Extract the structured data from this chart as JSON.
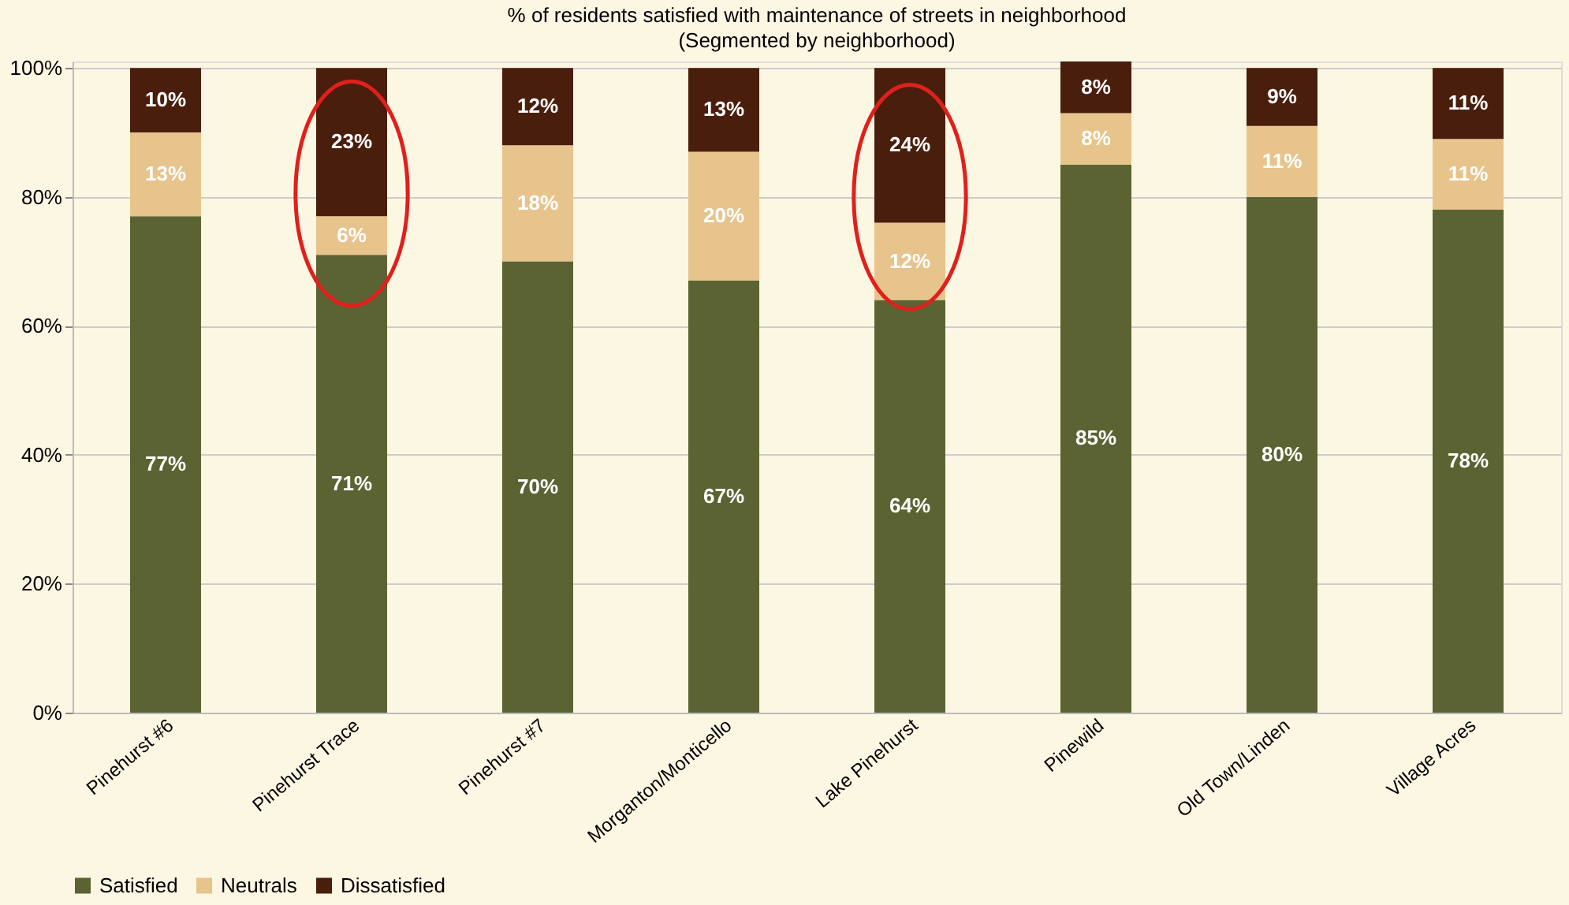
{
  "chart_data": {
    "type": "bar",
    "stacked": true,
    "title": "% of residents satisfied with maintenance of streets in neighborhood",
    "subtitle": "(Segmented by neighborhood)",
    "categories": [
      "Pinehurst #6",
      "Pinehurst Trace",
      "Pinehurst #7",
      "Morganton/Monticello",
      "Lake Pinehurst",
      "Pinewild",
      "Old Town/Linden",
      "Village Acres"
    ],
    "series": [
      {
        "name": "Satisfied",
        "color": "#5b6333",
        "values": [
          77,
          71,
          70,
          67,
          64,
          85,
          80,
          78
        ],
        "value_labels": [
          "77%",
          "71%",
          "70%",
          "67%",
          "64%",
          "85%",
          "80%",
          "78%"
        ]
      },
      {
        "name": "Neutrals",
        "color": "#e6c48c",
        "values": [
          13,
          6,
          18,
          20,
          12,
          8,
          11,
          11
        ],
        "value_labels": [
          "13%",
          "6%",
          "18%",
          "20%",
          "12%",
          "8%",
          "11%",
          "11%"
        ]
      },
      {
        "name": "Dissatisfied",
        "color": "#4a1e0c",
        "values": [
          10,
          23,
          12,
          13,
          24,
          8,
          9,
          11
        ],
        "value_labels": [
          "10%",
          "23%",
          "12%",
          "13%",
          "24%",
          "8%",
          "9%",
          "11%"
        ]
      }
    ],
    "ylim": [
      0,
      101
    ],
    "yticks": [
      {
        "value": 0,
        "label": "0%"
      },
      {
        "value": 20,
        "label": "20%"
      },
      {
        "value": 40,
        "label": "40%"
      },
      {
        "value": 60,
        "label": "60%"
      },
      {
        "value": 80,
        "label": "80%"
      },
      {
        "value": 100,
        "label": "100%"
      }
    ],
    "grid": "y",
    "legend": "bottom"
  }
}
